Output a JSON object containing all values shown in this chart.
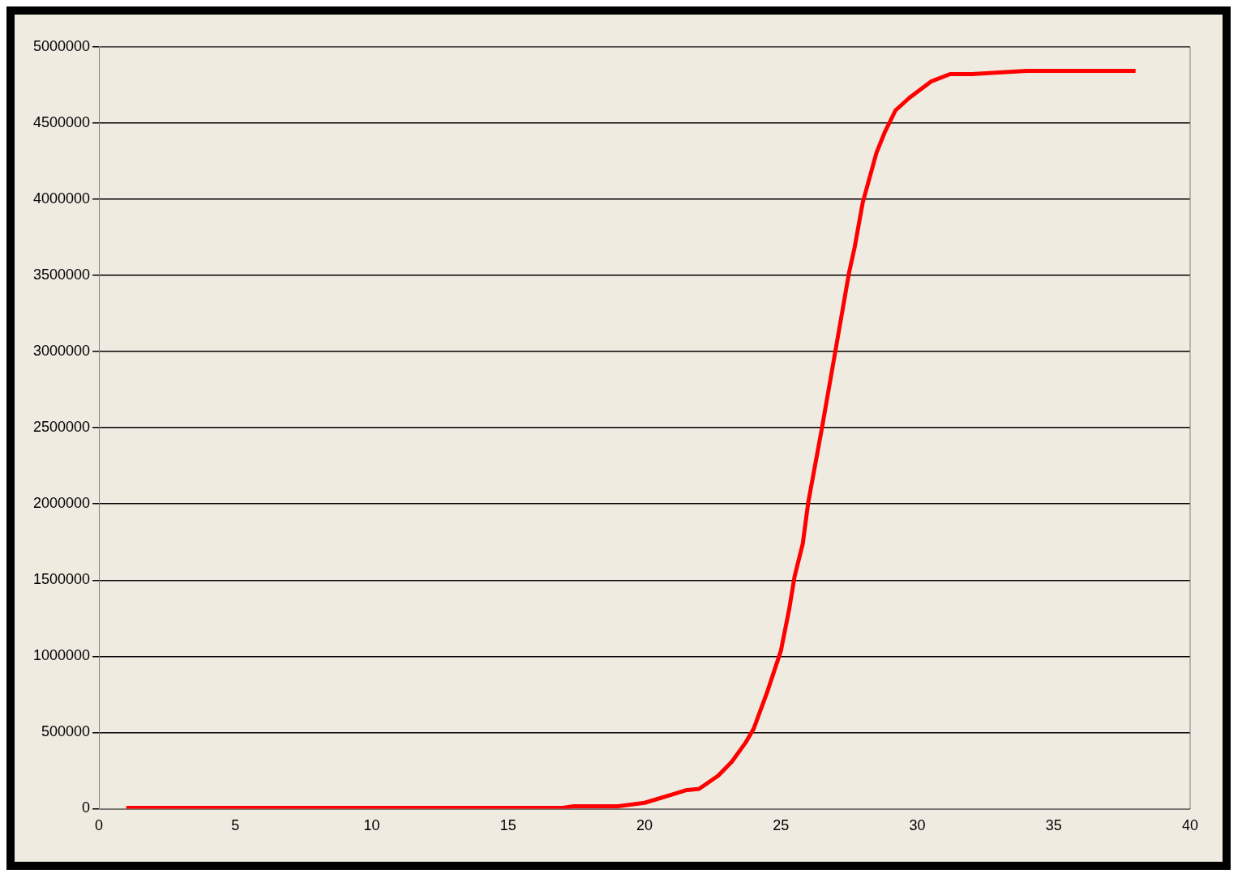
{
  "chart_data": {
    "type": "line",
    "x": [
      1,
      5,
      10,
      15,
      17,
      17.4,
      19,
      20,
      21,
      21.5,
      22,
      22.7,
      23.2,
      23.7,
      24,
      24.5,
      25,
      25.3,
      25.5,
      25.8,
      26,
      26.5,
      27,
      27.5,
      27.7,
      28,
      28.5,
      28.8,
      29.2,
      29.7,
      30.5,
      31.2,
      32,
      34,
      38
    ],
    "series": [
      {
        "color": "#ff0000",
        "values": [
          5000,
          5000,
          5000,
          5000,
          5000,
          15000,
          15000,
          38000,
          92000,
          120000,
          130000,
          216000,
          308000,
          432000,
          524000,
          767000,
          1037000,
          1307000,
          1523000,
          1739000,
          2009000,
          2495000,
          3008000,
          3521000,
          3683000,
          3980000,
          4304000,
          4438000,
          4584000,
          4665000,
          4773000,
          4822000,
          4822000,
          4843000,
          4843000
        ]
      }
    ],
    "xlim": [
      0,
      40
    ],
    "xticks": [
      0,
      5,
      10,
      15,
      20,
      25,
      30,
      35,
      40
    ],
    "ylim": [
      0,
      5000000
    ],
    "yticks": [
      0,
      500000,
      1000000,
      1500000,
      2000000,
      2500000,
      3000000,
      3500000,
      4000000,
      4500000,
      5000000
    ],
    "grid": "y",
    "legend": false,
    "marker": "none",
    "line_style": "solid"
  }
}
